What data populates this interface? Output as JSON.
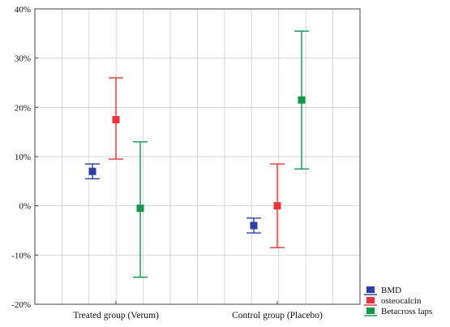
{
  "chart_data": {
    "type": "errorbar",
    "categories": [
      "Treated group (Verum)",
      "Control group (Placebo)"
    ],
    "series": [
      {
        "name": "BMD",
        "color": "#2e3fa3",
        "values": [
          7,
          -4
        ],
        "lower": [
          5.5,
          -5.5
        ],
        "upper": [
          8.5,
          -2.5
        ]
      },
      {
        "name": "osteocalcin",
        "color": "#e8333a",
        "values": [
          17.5,
          0
        ],
        "lower": [
          9.5,
          -8.5
        ],
        "upper": [
          26,
          8.5
        ]
      },
      {
        "name": "Betacross laps",
        "color": "#12964a",
        "values": [
          -0.5,
          21.5
        ],
        "lower": [
          -14.5,
          7.5
        ],
        "upper": [
          13,
          35.5
        ]
      }
    ],
    "y_ticks": [
      "40%",
      "30%",
      "20%",
      "10%",
      "0%",
      "-10%",
      "-20%"
    ],
    "y_tick_values": [
      40,
      30,
      20,
      10,
      0,
      -10,
      -20
    ],
    "ylim": [
      -20,
      40
    ],
    "grid": true,
    "legend_position": "bottom-right"
  }
}
